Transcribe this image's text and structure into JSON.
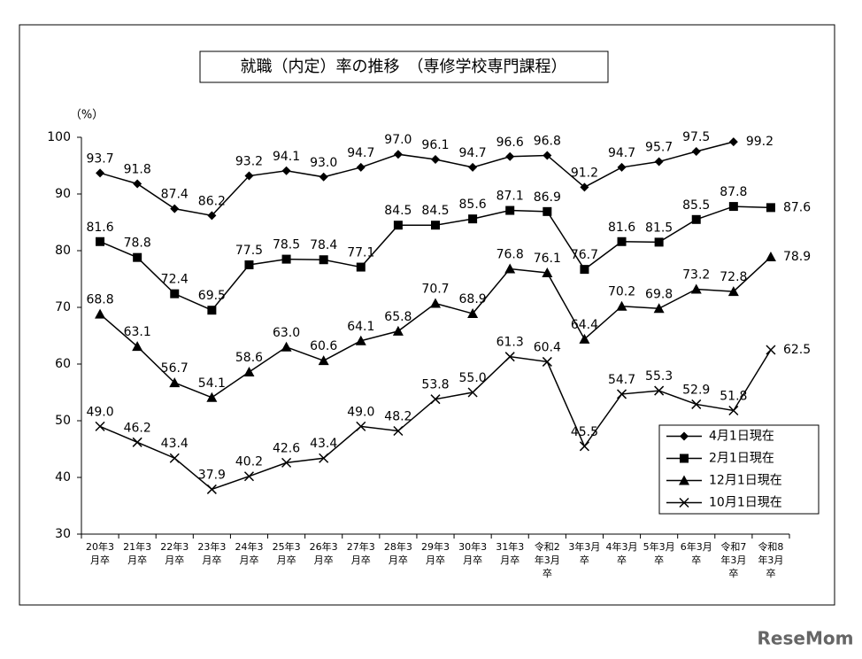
{
  "chart_data": {
    "type": "line",
    "title": "就職（内定）率の推移　（専修学校専門課程）",
    "y_label": "（%）",
    "watermark": "ReseMom",
    "categories": [
      "20年3月卒",
      "21年3月卒",
      "22年3月卒",
      "23年3月卒",
      "24年3月卒",
      "25年3月卒",
      "26年3月卒",
      "27年3月卒",
      "28年3月卒",
      "29年3月卒",
      "30年3月卒",
      "31年3月卒",
      "令和2年3月卒",
      "3年3月卒",
      "4年3月卒",
      "5年3月卒",
      "6年3月卒",
      "令和7年3月卒",
      "令和8年3月卒"
    ],
    "series": [
      {
        "name": "4月1日現在",
        "color": "#000000",
        "marker": "diamond",
        "values": [
          93.7,
          91.8,
          87.4,
          86.2,
          93.2,
          94.1,
          93.0,
          94.7,
          97.0,
          96.1,
          94.7,
          96.6,
          96.8,
          91.2,
          94.7,
          95.7,
          97.5,
          99.2,
          null
        ],
        "value_labels": [
          "93.7",
          "91.8",
          "87.4",
          "86.2",
          "93.2",
          "94.1",
          "93.0",
          "94.7",
          "97.0",
          "96.1",
          "94.7",
          "96.6",
          "96.8",
          "91.2",
          "94.7",
          "95.7",
          "97.5",
          "99.2",
          null
        ]
      },
      {
        "name": "2月1日現在",
        "color": "#000000",
        "marker": "square",
        "values": [
          81.6,
          78.8,
          72.4,
          69.5,
          77.5,
          78.5,
          78.4,
          77.1,
          84.5,
          84.5,
          85.6,
          87.1,
          86.9,
          76.7,
          81.6,
          81.5,
          85.5,
          87.8,
          87.6
        ],
        "value_labels": [
          "81.6",
          "78.8",
          "72.4",
          "69.5",
          "77.5",
          "78.5",
          "78.4",
          "77.1",
          "84.5",
          "84.5",
          "85.6",
          "87.1",
          "86.9",
          "76.7",
          "81.6",
          "81.5",
          "85.5",
          "87.8",
          "87.6"
        ]
      },
      {
        "name": "12月1日現在",
        "color": "#000000",
        "marker": "triangle",
        "values": [
          68.8,
          63.1,
          56.7,
          54.1,
          58.6,
          63.0,
          60.6,
          64.1,
          65.8,
          70.7,
          68.9,
          76.8,
          76.1,
          64.4,
          70.2,
          69.8,
          73.2,
          72.8,
          78.9
        ],
        "value_labels": [
          "68.8",
          "63.1",
          "56.7",
          "54.1",
          "58.6",
          "63.0",
          "60.6",
          "64.1",
          "65.8",
          "70.7",
          "68.9",
          "76.8",
          "76.1",
          "64.4",
          "70.2",
          "69.8",
          "73.2",
          "72.8",
          "78.9"
        ]
      },
      {
        "name": "10月1日現在",
        "color": "#000000",
        "marker": "x",
        "values": [
          49.0,
          46.2,
          43.4,
          37.9,
          40.2,
          42.6,
          43.4,
          49.0,
          48.2,
          53.8,
          55.0,
          61.3,
          60.4,
          45.5,
          54.7,
          55.3,
          52.9,
          51.8,
          62.5
        ],
        "value_labels": [
          "49.0",
          "46.2",
          "43.4",
          "37.9",
          "40.2",
          "42.6",
          "43.4",
          "49.0",
          "48.2",
          "53.8",
          "55.0",
          "61.3",
          "60.4",
          "45.5",
          "54.7",
          "55.3",
          "52.9",
          "51.8",
          "62.5"
        ]
      }
    ],
    "ylim": [
      30,
      100
    ],
    "yticks": [
      30,
      40,
      50,
      60,
      70,
      80,
      90,
      100
    ],
    "grid": false,
    "legend": "lower-right"
  }
}
